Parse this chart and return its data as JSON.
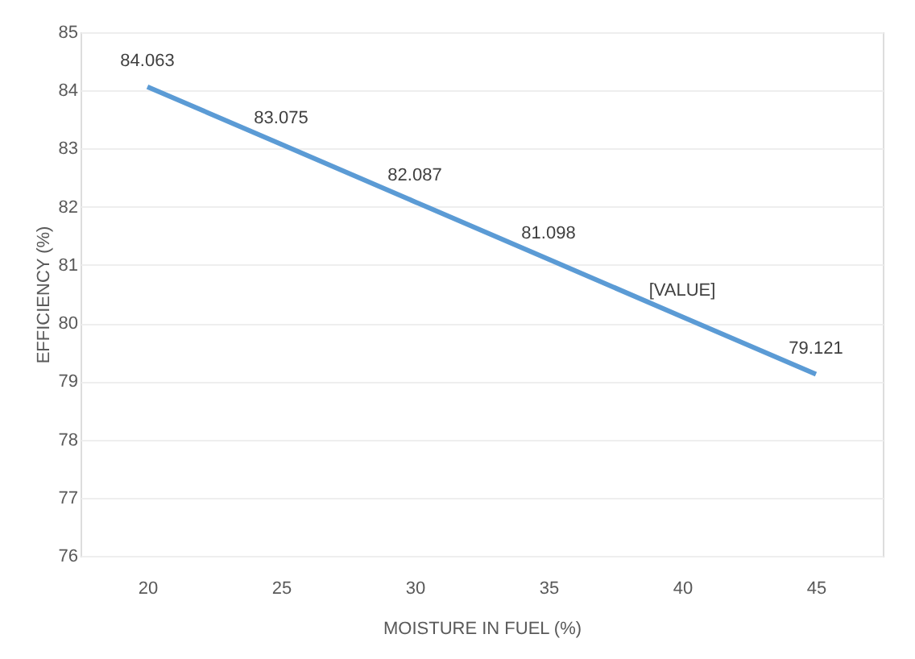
{
  "chart_data": {
    "type": "line",
    "xlabel": "MOISTURE IN FUEL (%)",
    "ylabel": "EFFICIENCY (%)",
    "categories": [
      "20",
      "25",
      "30",
      "35",
      "40",
      "45"
    ],
    "series": [
      {
        "color": "#5b9bd5",
        "values": [
          84.063,
          83.075,
          82.087,
          81.098,
          80.11,
          79.121
        ],
        "value_labels": [
          "84.063",
          "83.075",
          "82.087",
          "81.098",
          "[VALUE]",
          "79.121"
        ]
      }
    ],
    "ylim": [
      76,
      85
    ],
    "yticks": [
      76,
      77,
      78,
      79,
      80,
      81,
      82,
      83,
      84,
      85
    ],
    "grid": "y",
    "marker": "none",
    "line_style": "solid"
  }
}
